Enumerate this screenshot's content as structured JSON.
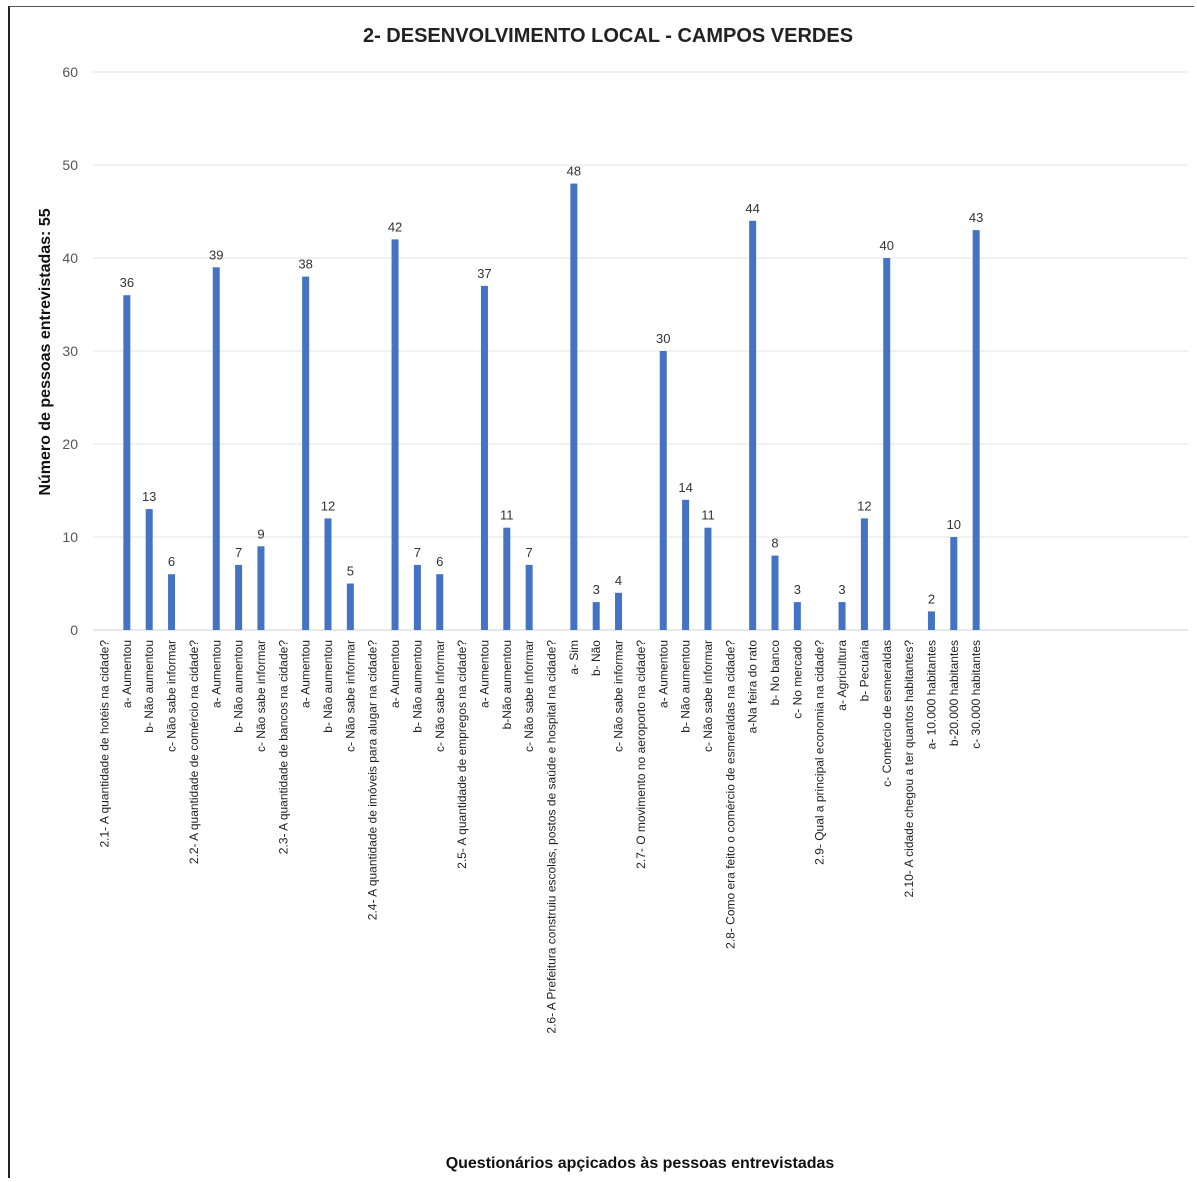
{
  "chart_data": {
    "type": "bar",
    "title": "2- DESENVOLVIMENTO LOCAL - CAMPOS VERDES",
    "ylabel": "Número de pessoas entrevistadas: 55",
    "xlabel": "Questionários apçicados às pessoas entrevistadas",
    "ylim": [
      0,
      60
    ],
    "yticks": [
      0,
      10,
      20,
      30,
      40,
      50,
      60
    ],
    "grid": true,
    "bar_color": "#4472c4",
    "categories": [
      "2.1- A quantidade de hotéis na cidade?",
      "a- Aumentou",
      "b- Não aumentou",
      "c- Não sabe informar",
      "2.2- A quantidade de comércio na cidade?",
      "a- Aumentou",
      "b- Não aumentou",
      "c- Não sabe informar",
      "2.3- A quantidade de bancos na cidade?",
      "a- Aumentou",
      "b- Não aumentou",
      "c- Não sabe informar",
      "2.4- A quantidade de imóveis para alugar na cidade?",
      "a- Aumentou",
      "b- Não aumentou",
      "c- Não sabe informar",
      "2.5- A quantidade de empregos na cidade?",
      "a- Aumentou",
      "b-Não aumentou",
      "c- Não sabe informar",
      "2.6- A Prefeitura construiu escolas, postos de saúde e hospital na cidade?",
      "a- Sim",
      "b- Não",
      "c- Não sabe informar",
      "2.7- O movimento no aeroporto na cidade?",
      "a- Aumentou",
      "b- Não aumentou",
      "c- Não sabe informar",
      "2.8- Como era feito o comércio de esmeraldas na cidade?",
      "a-Na feira do rato",
      "b- No banco",
      "c- No mercado",
      "2.9- Qual a principal economia na cidade?",
      "a- Agricultura",
      "b- Pecuária",
      "c- Comércio de esmeraldas",
      "2.10- A cidade chegou a ter quantos habitantes?",
      "a- 10.000 habitantes",
      "b-20.000 habitantes",
      "c- 30.000 habitantes"
    ],
    "values": [
      null,
      36,
      13,
      6,
      null,
      39,
      7,
      9,
      null,
      38,
      12,
      5,
      null,
      42,
      7,
      6,
      null,
      37,
      11,
      7,
      null,
      48,
      3,
      4,
      null,
      30,
      14,
      11,
      null,
      44,
      8,
      3,
      null,
      3,
      12,
      40,
      null,
      2,
      10,
      43
    ]
  }
}
